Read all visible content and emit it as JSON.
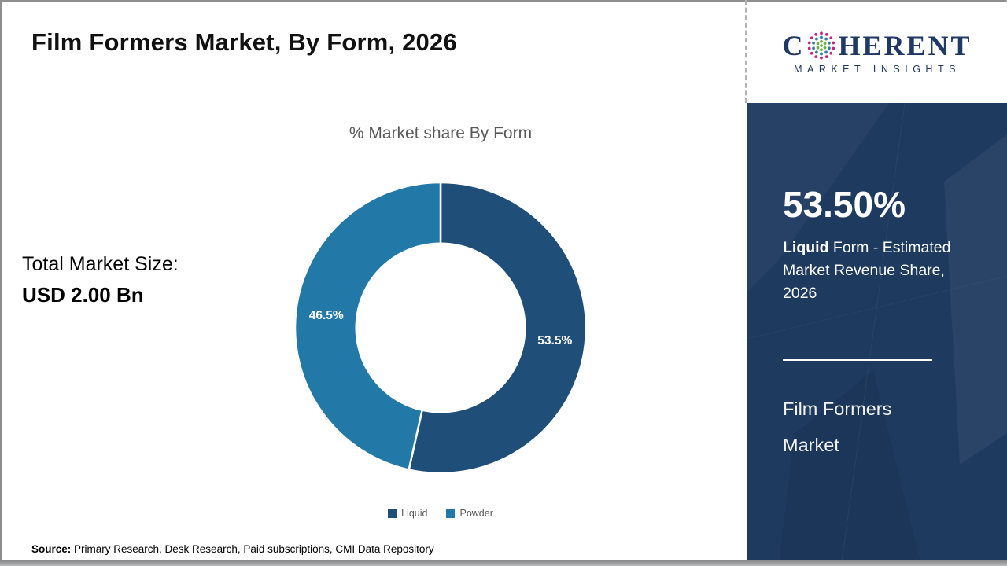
{
  "header": {
    "title": "Film Formers Market, By Form, 2026"
  },
  "logo": {
    "text_c": "C",
    "text_rest": "HERENT",
    "subtitle": "MARKET INSIGHTS",
    "globe_icon": "dot-globe",
    "globe_colors": {
      "outer": "#c2267e",
      "middle": "#2e7fa8",
      "inner": "#6cb33f"
    },
    "brand_color": "#1f3864"
  },
  "left_panel": {
    "label": "Total Market Size:",
    "value": "USD 2.00 Bn"
  },
  "chart_data": {
    "type": "pie",
    "subtype": "donut",
    "title": "% Market share By Form",
    "categories": [
      "Liquid",
      "Powder"
    ],
    "values": [
      53.5,
      46.5
    ],
    "data_labels": [
      "53.5%",
      "46.5%"
    ],
    "colors": [
      "#1f4e79",
      "#2279a8"
    ],
    "start_angle_deg": 0,
    "direction": "clockwise",
    "inner_radius_ratio": 0.58,
    "legend_position": "bottom",
    "label_color": "#ffffff"
  },
  "sidebar": {
    "background": "#1e3a5f",
    "stat_value": "53.50%",
    "stat_desc_bold": "Liquid",
    "stat_desc_rest": " Form - Estimated Market Revenue Share, 2026",
    "market_name_line1": "Film Formers",
    "market_name_line2": "Market"
  },
  "footer": {
    "source_label": "Source:",
    "source_text": " Primary Research, Desk Research, Paid subscriptions, CMI Data Repository"
  }
}
